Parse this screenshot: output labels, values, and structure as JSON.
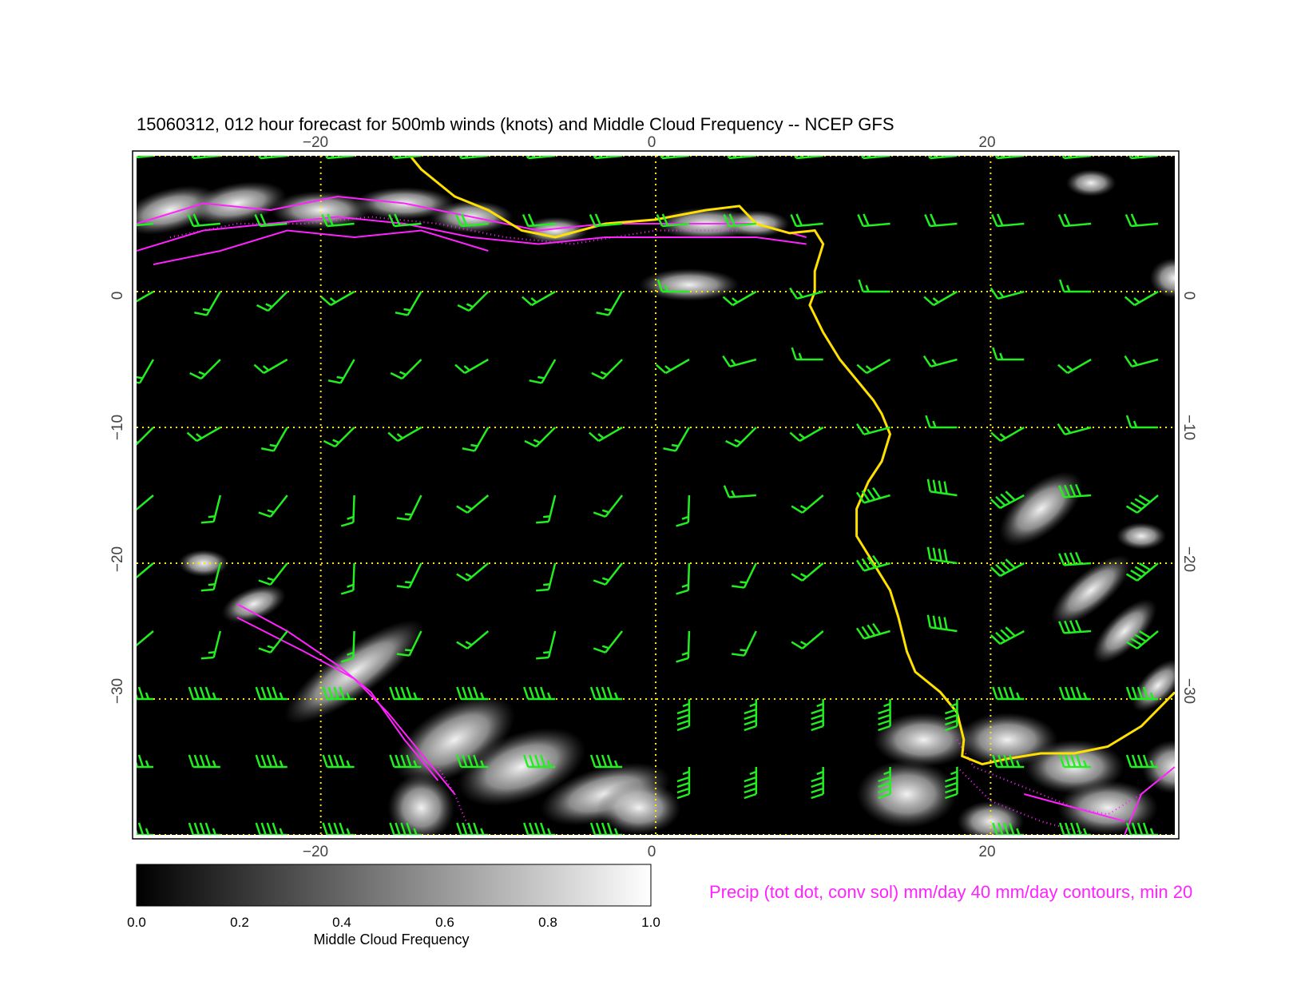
{
  "title": "15060312, 012 hour forecast for 500mb winds (knots) and Middle Cloud Frequency -- NCEP GFS",
  "map": {
    "lon_range": [
      -31,
      31
    ],
    "lat_range": [
      -40,
      10
    ],
    "lon_ticks": [
      -20,
      0,
      20
    ],
    "lat_ticks": [
      0,
      -10,
      -20,
      -30
    ],
    "background": "#000000",
    "gridline_color": "#ffe800",
    "coastline_color": "#ffe000"
  },
  "top_axis_labels": [
    "−20",
    "0",
    "20"
  ],
  "bottom_axis_labels": [
    "−20",
    "0",
    "20"
  ],
  "left_axis_labels": [
    "0",
    "−10",
    "−20",
    "−30"
  ],
  "right_axis_labels": [
    "0",
    "−10",
    "−20",
    "−30"
  ],
  "wind_barbs": {
    "units": "knots",
    "color": "#22ee22"
  },
  "precip": {
    "color": "#ff22ff",
    "label": "Precip (tot dot, conv sol) mm/day 40 mm/day contours, min 20"
  },
  "colorbar": {
    "min": 0.0,
    "max": 1.0,
    "tick_labels": [
      "0.0",
      "0.2",
      "0.4",
      "0.6",
      "0.8",
      "1.0"
    ],
    "label": "Middle Cloud Frequency"
  }
}
